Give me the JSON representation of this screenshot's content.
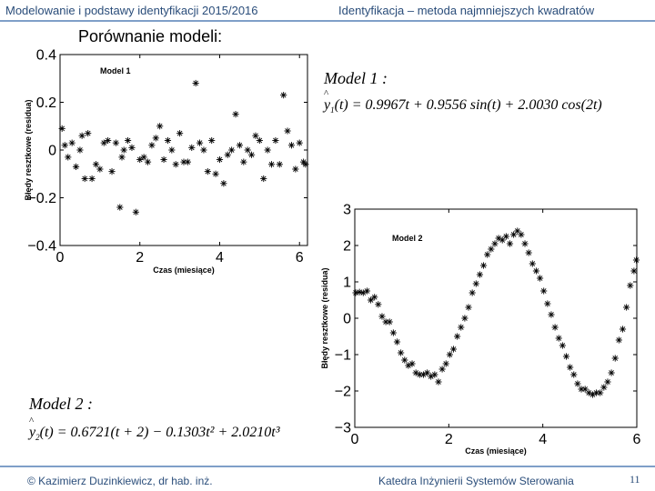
{
  "header": {
    "left": "Modelowanie i podstawy identyfikacji 2015/2016",
    "right": "Identyfikacja – metoda najmniejszych kwadratów"
  },
  "section_title": "Porównanie modeli:",
  "model1": {
    "title": "Model 1 :",
    "eq": "= 0.9967t + 0.9556 sin(t) + 2.0030 cos(2t)"
  },
  "model2": {
    "title": "Model 2 :",
    "eq": "= 0.6721(t + 2) − 0.1303t² + 2.0210t³"
  },
  "footer": {
    "left": "© Kazimierz Duzinkiewicz, dr hab. inż.",
    "middle": "Katedra Inżynierii Systemów Sterowania",
    "page": "11"
  },
  "chart_data": [
    {
      "type": "scatter",
      "title": "Model 1",
      "xlabel": "Czas (miesiące)",
      "ylabel": "Błędy resztkowe (residua)",
      "xlim": [
        0,
        6.2
      ],
      "ylim": [
        -0.4,
        0.4
      ],
      "xticks": [
        0,
        2,
        4,
        6
      ],
      "yticks": [
        -0.4,
        -0.2,
        0,
        0.2,
        0.4
      ],
      "ytick_labels": [
        "−0.4",
        "−0.2",
        "0",
        "0.2",
        "0.4"
      ],
      "grid": false,
      "marker": "asterisk",
      "x": [
        0.05,
        0.12,
        0.2,
        0.3,
        0.4,
        0.5,
        0.55,
        0.62,
        0.7,
        0.8,
        0.9,
        1.0,
        1.1,
        1.2,
        1.3,
        1.4,
        1.5,
        1.55,
        1.6,
        1.7,
        1.8,
        1.9,
        2.0,
        2.1,
        2.2,
        2.3,
        2.4,
        2.5,
        2.6,
        2.7,
        2.8,
        2.9,
        3.0,
        3.1,
        3.2,
        3.3,
        3.4,
        3.5,
        3.6,
        3.7,
        3.8,
        3.9,
        4.0,
        4.1,
        4.2,
        4.3,
        4.4,
        4.5,
        4.6,
        4.7,
        4.8,
        4.9,
        5.0,
        5.1,
        5.2,
        5.3,
        5.4,
        5.5,
        5.6,
        5.7,
        5.8,
        5.9,
        6.0,
        6.1,
        6.15
      ],
      "y": [
        0.09,
        0.02,
        -0.03,
        0.03,
        -0.07,
        0.0,
        0.06,
        -0.12,
        0.07,
        -0.12,
        -0.06,
        -0.08,
        0.03,
        0.04,
        -0.09,
        0.03,
        -0.24,
        -0.03,
        0.0,
        0.04,
        0.01,
        -0.26,
        -0.04,
        -0.03,
        -0.05,
        0.02,
        0.05,
        0.1,
        -0.04,
        0.04,
        0.0,
        -0.06,
        0.07,
        -0.05,
        -0.05,
        0.01,
        0.28,
        0.03,
        0.0,
        -0.09,
        0.04,
        -0.1,
        -0.04,
        -0.14,
        -0.02,
        0.0,
        0.15,
        0.02,
        -0.05,
        0.0,
        -0.02,
        0.06,
        0.04,
        -0.12,
        0.0,
        -0.06,
        0.04,
        -0.06,
        0.23,
        0.08,
        0.02,
        -0.08,
        0.03,
        -0.05,
        -0.06
      ]
    },
    {
      "type": "scatter",
      "title": "Model 2",
      "xlabel": "Czas (miesiące)",
      "ylabel": "Błędy resztkowe (residua)",
      "xlim": [
        0,
        6
      ],
      "ylim": [
        -3,
        3
      ],
      "xticks": [
        0,
        2,
        4,
        6
      ],
      "yticks": [
        -3,
        -2,
        -1,
        0,
        1,
        2,
        3
      ],
      "ytick_labels": [
        "−3",
        "−2",
        "−1",
        "0",
        "1",
        "2",
        "3"
      ],
      "grid": false,
      "marker": "asterisk",
      "x": [
        0.02,
        0.1,
        0.18,
        0.26,
        0.34,
        0.42,
        0.5,
        0.58,
        0.66,
        0.74,
        0.82,
        0.9,
        0.98,
        1.06,
        1.14,
        1.22,
        1.3,
        1.38,
        1.46,
        1.54,
        1.62,
        1.7,
        1.78,
        1.86,
        1.94,
        2.02,
        2.1,
        2.18,
        2.26,
        2.34,
        2.42,
        2.5,
        2.58,
        2.66,
        2.74,
        2.82,
        2.9,
        2.98,
        3.06,
        3.14,
        3.22,
        3.3,
        3.38,
        3.46,
        3.54,
        3.62,
        3.7,
        3.78,
        3.86,
        3.94,
        4.02,
        4.1,
        4.18,
        4.26,
        4.34,
        4.42,
        4.5,
        4.58,
        4.66,
        4.74,
        4.82,
        4.9,
        4.98,
        5.06,
        5.14,
        5.22,
        5.3,
        5.38,
        5.46,
        5.54,
        5.62,
        5.7,
        5.78,
        5.86,
        5.94,
        5.99
      ],
      "y": [
        0.7,
        0.72,
        0.7,
        0.75,
        0.5,
        0.58,
        0.38,
        0.05,
        -0.1,
        -0.1,
        -0.4,
        -0.65,
        -0.95,
        -1.15,
        -1.3,
        -1.25,
        -1.5,
        -1.55,
        -1.55,
        -1.5,
        -1.6,
        -1.55,
        -1.75,
        -1.4,
        -1.25,
        -1.0,
        -0.85,
        -0.5,
        -0.25,
        0.0,
        0.3,
        0.7,
        0.95,
        1.2,
        1.45,
        1.75,
        1.9,
        2.05,
        2.2,
        2.15,
        2.25,
        2.05,
        2.3,
        2.4,
        2.3,
        2.05,
        1.8,
        1.5,
        1.3,
        1.1,
        0.75,
        0.4,
        0.1,
        -0.25,
        -0.55,
        -0.75,
        -1.05,
        -1.35,
        -1.55,
        -1.8,
        -1.95,
        -1.95,
        -2.05,
        -2.1,
        -2.05,
        -2.05,
        -1.9,
        -1.75,
        -1.5,
        -1.1,
        -0.6,
        -0.3,
        0.3,
        0.9,
        1.3,
        1.6
      ]
    }
  ]
}
